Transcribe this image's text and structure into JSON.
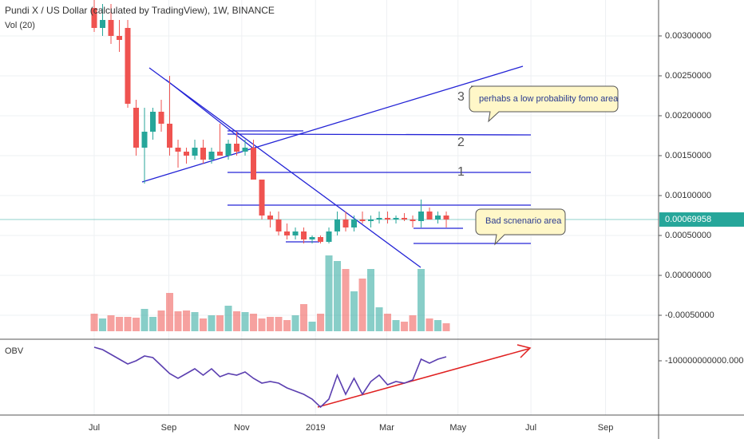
{
  "header": {
    "title": "Pundi X / US Dollar (calculated by TradingView), 1W, BINANCE",
    "volume_label": "Vol (20)"
  },
  "chart_data": [
    {
      "type": "candlestick",
      "x": [
        0,
        1,
        2,
        3,
        4,
        5,
        6,
        7,
        8,
        9,
        10,
        11,
        12,
        13,
        14,
        15,
        16,
        17,
        18,
        19,
        20,
        21,
        22,
        23,
        24,
        25,
        26,
        27,
        28,
        29,
        30,
        31,
        32,
        33,
        34,
        35,
        36,
        37,
        38,
        39,
        40,
        41,
        42
      ],
      "open": [
        0.00335,
        0.0031,
        0.0032,
        0.003,
        0.0031,
        0.0021,
        0.0016,
        0.0018,
        0.00205,
        0.0019,
        0.0016,
        0.00155,
        0.0015,
        0.0016,
        0.00145,
        0.00155,
        0.0015,
        0.00165,
        0.00155,
        0.0016,
        0.0012,
        0.00075,
        0.0007,
        0.00055,
        0.0005,
        0.00055,
        0.00045,
        0.00048,
        0.00042,
        0.00055,
        0.0007,
        0.0006,
        0.0007,
        0.00068,
        0.0007,
        0.00072,
        0.0007,
        0.00072,
        0.0007,
        0.00068,
        0.0008,
        0.0007,
        0.00075
      ],
      "high": [
        0.0035,
        0.0034,
        0.0034,
        0.0032,
        0.0032,
        0.0022,
        0.0021,
        0.0021,
        0.0022,
        0.0025,
        0.0017,
        0.0016,
        0.0017,
        0.0017,
        0.0016,
        0.0019,
        0.0017,
        0.0018,
        0.0017,
        0.0017,
        0.0012,
        0.0008,
        0.0008,
        0.00065,
        0.0006,
        0.0006,
        0.0005,
        0.0005,
        0.0006,
        0.0008,
        0.0008,
        0.00075,
        0.0008,
        0.00075,
        0.0008,
        0.0008,
        0.00075,
        0.00078,
        0.00075,
        0.00095,
        0.00085,
        0.0008,
        0.0008
      ],
      "low": [
        0.00305,
        0.003,
        0.0029,
        0.0028,
        0.0021,
        0.0015,
        0.00115,
        0.0017,
        0.0018,
        0.0015,
        0.00135,
        0.0014,
        0.00145,
        0.0014,
        0.0014,
        0.0015,
        0.00145,
        0.0015,
        0.0015,
        0.0012,
        0.0007,
        0.0006,
        0.0005,
        0.00045,
        0.00045,
        0.0004,
        0.0004,
        0.0004,
        0.0004,
        0.0005,
        0.00055,
        0.00055,
        0.00065,
        0.0006,
        0.00065,
        0.00065,
        0.00065,
        0.00068,
        0.0006,
        0.0006,
        0.0007,
        0.00065,
        0.0006
      ],
      "close": [
        0.0031,
        0.0032,
        0.003,
        0.00295,
        0.00215,
        0.0016,
        0.0018,
        0.00205,
        0.0019,
        0.0016,
        0.00155,
        0.0015,
        0.0016,
        0.00145,
        0.00155,
        0.0015,
        0.00165,
        0.00155,
        0.0016,
        0.0012,
        0.00075,
        0.0007,
        0.00055,
        0.0005,
        0.00055,
        0.00045,
        0.00048,
        0.00042,
        0.00055,
        0.0007,
        0.0006,
        0.0007,
        0.00068,
        0.0007,
        0.00072,
        0.0007,
        0.00072,
        0.0007,
        0.00068,
        0.0008,
        0.0007,
        0.00075,
        0.00069958
      ],
      "up_color": "#26a69a",
      "down_color": "#ef5350",
      "last_price": 0.00069958,
      "xlim": [
        -11.24,
        67.33
      ],
      "xticks": [
        {
          "value": 0,
          "label": "Jul"
        },
        {
          "value": 8.9,
          "label": "Sep"
        },
        {
          "value": 17.6,
          "label": "Nov"
        },
        {
          "value": 26.4,
          "label": "2019"
        },
        {
          "value": 34.9,
          "label": "Mar"
        },
        {
          "value": 43.4,
          "label": "May"
        },
        {
          "value": 52.1,
          "label": "Jul"
        },
        {
          "value": 61,
          "label": "Sep"
        }
      ],
      "ylim": [
        -0.0008,
        0.00345
      ],
      "yticks": [
        {
          "value": 0.003,
          "label": "0.00300000"
        },
        {
          "value": 0.0025,
          "label": "0.00250000"
        },
        {
          "value": 0.002,
          "label": "0.00200000"
        },
        {
          "value": 0.0015,
          "label": "0.00150000"
        },
        {
          "value": 0.001,
          "label": "0.00100000"
        },
        {
          "value": 0.0005,
          "label": "0.00050000"
        },
        {
          "value": 0,
          "label": "0.00000000"
        },
        {
          "value": -0.0005,
          "label": "-0.00050000"
        }
      ],
      "annotations": [
        "1",
        "2",
        "3",
        "perhabs a low probability fomo area",
        "Bad scnenario area"
      ]
    },
    {
      "type": "bar",
      "values": [
        22,
        16,
        20,
        18,
        18,
        17,
        28,
        18,
        26,
        48,
        25,
        26,
        24,
        16,
        20,
        20,
        32,
        25,
        24,
        22,
        16,
        18,
        18,
        14,
        20,
        34,
        12,
        22,
        95,
        88,
        78,
        50,
        66,
        78,
        30,
        22,
        14,
        12,
        20,
        78,
        16,
        14,
        10
      ],
      "ylim": [
        0,
        100
      ]
    },
    {
      "type": "line",
      "title": "OBV",
      "color": "#5b3fb0",
      "values": [
        -66000000000,
        -72000000000,
        -84000000000,
        -96000000000,
        -108000000000,
        -100000000000,
        -88000000000,
        -92000000000,
        -112000000000,
        -132000000000,
        -144000000000,
        -132000000000,
        -120000000000,
        -136000000000,
        -120000000000,
        -140000000000,
        -132000000000,
        -136000000000,
        -128000000000,
        -144000000000,
        -156000000000,
        -152000000000,
        -156000000000,
        -168000000000,
        -176000000000,
        -184000000000,
        -196000000000,
        -216000000000,
        -196000000000,
        -136000000000,
        -184000000000,
        -144000000000,
        -184000000000,
        -152000000000,
        -136000000000,
        -160000000000,
        -152000000000,
        -156000000000,
        -148000000000,
        -96000000000,
        -106000000000,
        -96000000000,
        -90000000000
      ],
      "ylim": [
        -236000000000,
        -52000000000
      ],
      "yticks": [
        {
          "value": -100000000000,
          "label": "-100000000000.0000"
        }
      ]
    }
  ]
}
